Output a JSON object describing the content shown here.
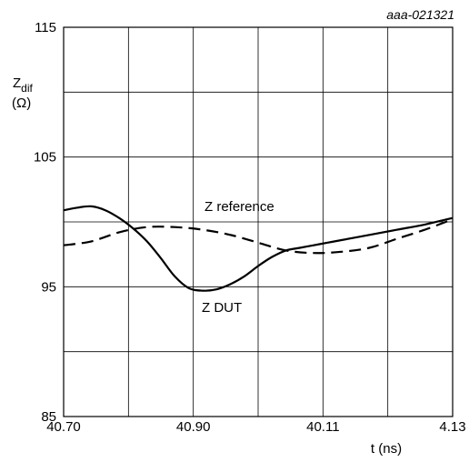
{
  "chart_data": {
    "type": "line",
    "reference_code": "aaa-021321",
    "ylabel": "Z",
    "ylabel_sub": "dif",
    "ylabel_unit": "(Ω)",
    "xlabel": "t (ns)",
    "ylim": [
      85,
      115
    ],
    "y_ticks": [
      "85",
      "95",
      "105",
      "115"
    ],
    "x_tick_labels": [
      "40.70",
      "40.90",
      "40.11",
      "4.13"
    ],
    "grid": true,
    "series": [
      {
        "name": "Z DUT",
        "style": "solid",
        "color": "#000000",
        "x": [
          0,
          0.25,
          0.5,
          0.75,
          1.0,
          1.25,
          1.5,
          1.75,
          2.0,
          2.25,
          2.5,
          2.75,
          3.0,
          3.25,
          3.5,
          3.75,
          4.0,
          4.25,
          4.5,
          4.75,
          5.0,
          5.5,
          6.0,
          6.5,
          7.0
        ],
        "y": [
          100.9,
          101.1,
          101.2,
          100.9,
          100.3,
          99.5,
          98.5,
          97.2,
          95.8,
          94.9,
          94.7,
          94.8,
          95.2,
          95.8,
          96.6,
          97.3,
          97.8,
          98.0,
          98.2,
          98.4,
          98.6,
          99.0,
          99.4,
          99.8,
          100.3
        ]
      },
      {
        "name": "Z reference",
        "style": "dashed",
        "color": "#000000",
        "x": [
          0,
          0.5,
          1.0,
          1.5,
          2.0,
          2.5,
          3.0,
          3.5,
          4.0,
          4.5,
          5.0,
          5.5,
          6.0,
          6.5,
          7.0
        ],
        "y": [
          98.2,
          98.5,
          99.2,
          99.6,
          99.6,
          99.4,
          99.0,
          98.4,
          97.8,
          97.6,
          97.7,
          98.0,
          98.7,
          99.4,
          100.2
        ]
      }
    ],
    "annotations": [
      "Z reference",
      "Z DUT"
    ]
  }
}
